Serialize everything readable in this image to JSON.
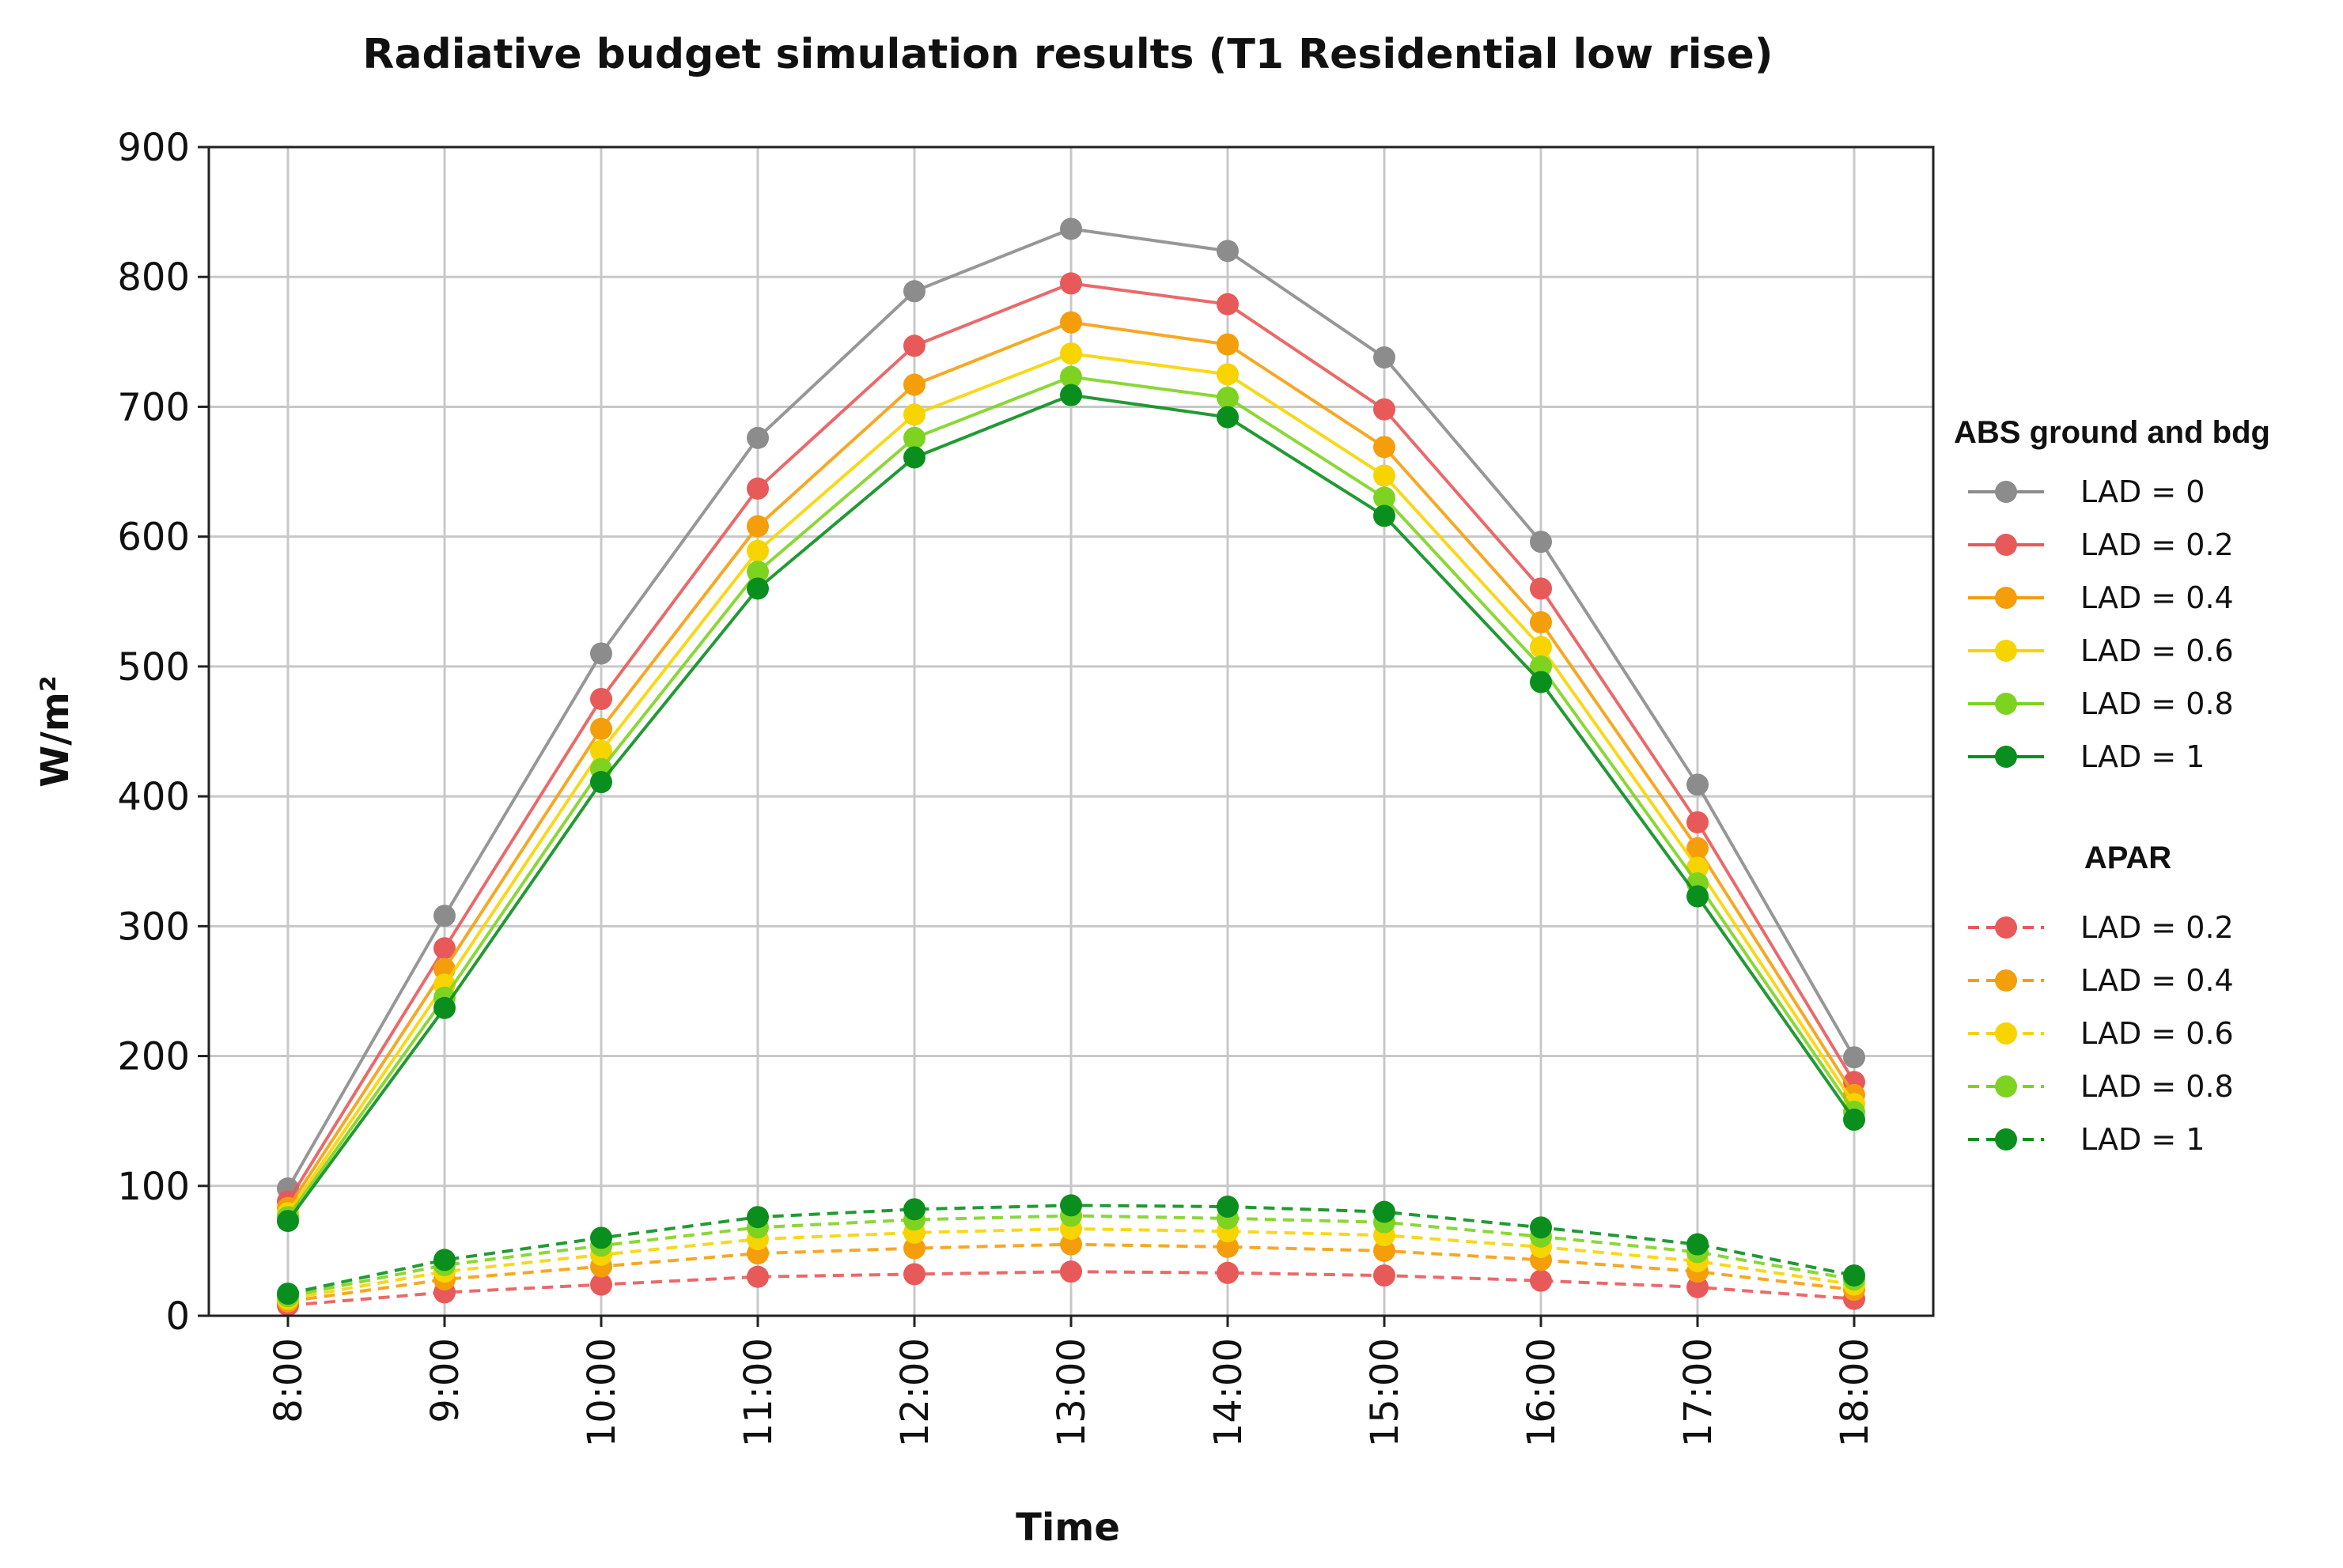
{
  "chart_data": {
    "type": "line",
    "title": "Radiative budget simulation results (T1 Residential low rise)",
    "xlabel": "Time",
    "ylabel": "W/m²",
    "ylim": [
      0,
      900
    ],
    "yticks": [
      0,
      100,
      200,
      300,
      400,
      500,
      600,
      700,
      800,
      900
    ],
    "x": [
      "8:00",
      "9:00",
      "10:00",
      "11:00",
      "12:00",
      "13:00",
      "14:00",
      "15:00",
      "16:00",
      "17:00",
      "18:00"
    ],
    "grid": true,
    "legend_position": "right",
    "groups": [
      {
        "title": "ABS ground and bdg",
        "line_style": "solid",
        "series": [
          {
            "name": "LAD = 0",
            "color": "#8c8c8c",
            "values": [
              98,
              308,
              510,
              676,
              789,
              837,
              820,
              738,
              596,
              409,
              199
            ]
          },
          {
            "name": "LAD = 0.2",
            "color": "#e8595a",
            "values": [
              88,
              283,
              475,
              637,
              747,
              795,
              779,
              698,
              560,
              380,
              180
            ]
          },
          {
            "name": "LAD = 0.4",
            "color": "#f59e0b",
            "values": [
              83,
              267,
              452,
              608,
              717,
              765,
              748,
              669,
              534,
              360,
              170
            ]
          },
          {
            "name": "LAD = 0.6",
            "color": "#f7d400",
            "values": [
              79,
              255,
              435,
              589,
              694,
              741,
              725,
              647,
              515,
              345,
              163
            ]
          },
          {
            "name": "LAD = 0.8",
            "color": "#7ed321",
            "values": [
              76,
              245,
              421,
              573,
              676,
              723,
              707,
              630,
              500,
              333,
              157
            ]
          },
          {
            "name": "LAD = 1",
            "color": "#0a8f1e",
            "values": [
              73,
              237,
              411,
              560,
              661,
              709,
              692,
              616,
              488,
              323,
              151
            ]
          }
        ]
      },
      {
        "title": "APAR",
        "line_style": "dashed",
        "series": [
          {
            "name": "LAD = 0.2",
            "color": "#e8595a",
            "values": [
              8,
              18,
              24,
              30,
              32,
              34,
              33,
              31,
              27,
              22,
              13
            ]
          },
          {
            "name": "LAD = 0.4",
            "color": "#f59e0b",
            "values": [
              11,
              28,
              38,
              48,
              52,
              55,
              53,
              50,
              43,
              34,
              20
            ]
          },
          {
            "name": "LAD = 0.6",
            "color": "#f7d400",
            "values": [
              13,
              34,
              47,
              59,
              64,
              67,
              65,
              62,
              53,
              42,
              24
            ]
          },
          {
            "name": "LAD = 0.8",
            "color": "#7ed321",
            "values": [
              15,
              39,
              54,
              68,
              74,
              77,
              75,
              72,
              61,
              49,
              28
            ]
          },
          {
            "name": "LAD = 1",
            "color": "#0a8f1e",
            "values": [
              17,
              43,
              60,
              76,
              82,
              85,
              84,
              80,
              68,
              55,
              31
            ]
          }
        ]
      }
    ]
  }
}
